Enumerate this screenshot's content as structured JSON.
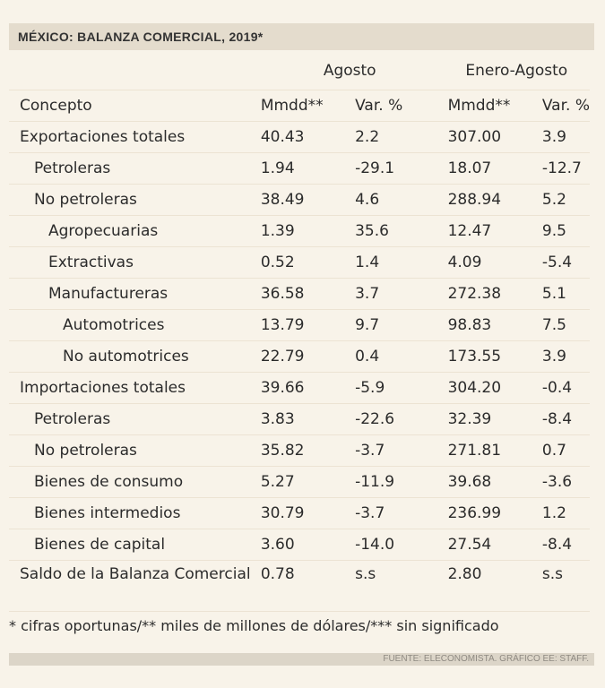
{
  "title": "MÉXICO: BALANZA COMERCIAL, 2019*",
  "groups": {
    "agosto": "Agosto",
    "enero_agosto": "Enero-Agosto"
  },
  "headers": {
    "concepto": "Concepto",
    "mmdd": "Mmdd**",
    "var": "Var. %"
  },
  "rows": [
    {
      "concepto": "Exportaciones totales",
      "a_mmdd": "40.43",
      "a_var": "2.2",
      "e_mmdd": "307.00",
      "e_var": "3.9"
    },
    {
      "concepto": "Petroleras",
      "a_mmdd": "1.94",
      "a_var": "-29.1",
      "e_mmdd": "18.07",
      "e_var": "-12.7"
    },
    {
      "concepto": "No petroleras",
      "a_mmdd": "38.49",
      "a_var": "4.6",
      "e_mmdd": "288.94",
      "e_var": "5.2"
    },
    {
      "concepto": "Agropecuarias",
      "a_mmdd": "1.39",
      "a_var": "35.6",
      "e_mmdd": "12.47",
      "e_var": "9.5"
    },
    {
      "concepto": "Extractivas",
      "a_mmdd": "0.52",
      "a_var": "1.4",
      "e_mmdd": "4.09",
      "e_var": "-5.4"
    },
    {
      "concepto": "Manufactureras",
      "a_mmdd": "36.58",
      "a_var": "3.7",
      "e_mmdd": "272.38",
      "e_var": "5.1"
    },
    {
      "concepto": "Automotrices",
      "a_mmdd": "13.79",
      "a_var": "9.7",
      "e_mmdd": "98.83",
      "e_var": "7.5"
    },
    {
      "concepto": "No automotrices",
      "a_mmdd": "22.79",
      "a_var": "0.4",
      "e_mmdd": "173.55",
      "e_var": "3.9"
    },
    {
      "concepto": "Importaciones totales",
      "a_mmdd": "39.66",
      "a_var": "-5.9",
      "e_mmdd": "304.20",
      "e_var": "-0.4"
    },
    {
      "concepto": "Petroleras",
      "a_mmdd": "3.83",
      "a_var": "-22.6",
      "e_mmdd": "32.39",
      "e_var": "-8.4"
    },
    {
      "concepto": "No petroleras",
      "a_mmdd": "35.82",
      "a_var": "-3.7",
      "e_mmdd": "271.81",
      "e_var": "0.7"
    },
    {
      "concepto": "Bienes de consumo",
      "a_mmdd": "5.27",
      "a_var": "-11.9",
      "e_mmdd": "39.68",
      "e_var": "-3.6"
    },
    {
      "concepto": "Bienes intermedios",
      "a_mmdd": "30.79",
      "a_var": "-3.7",
      "e_mmdd": "236.99",
      "e_var": "1.2"
    },
    {
      "concepto": "Bienes de capital",
      "a_mmdd": "3.60",
      "a_var": "-14.0",
      "e_mmdd": "27.54",
      "e_var": "-8.4"
    },
    {
      "concepto": "Saldo de la Balanza Comercial",
      "a_mmdd": "0.78",
      "a_var": "s.s",
      "e_mmdd": "2.80",
      "e_var": "s.s"
    }
  ],
  "note": "* cifras oportunas/** miles de millones de dólares/*** sin significado",
  "source": "FUENTE: ELECONOMISTA. GRÁFICO EE: STAFF."
}
